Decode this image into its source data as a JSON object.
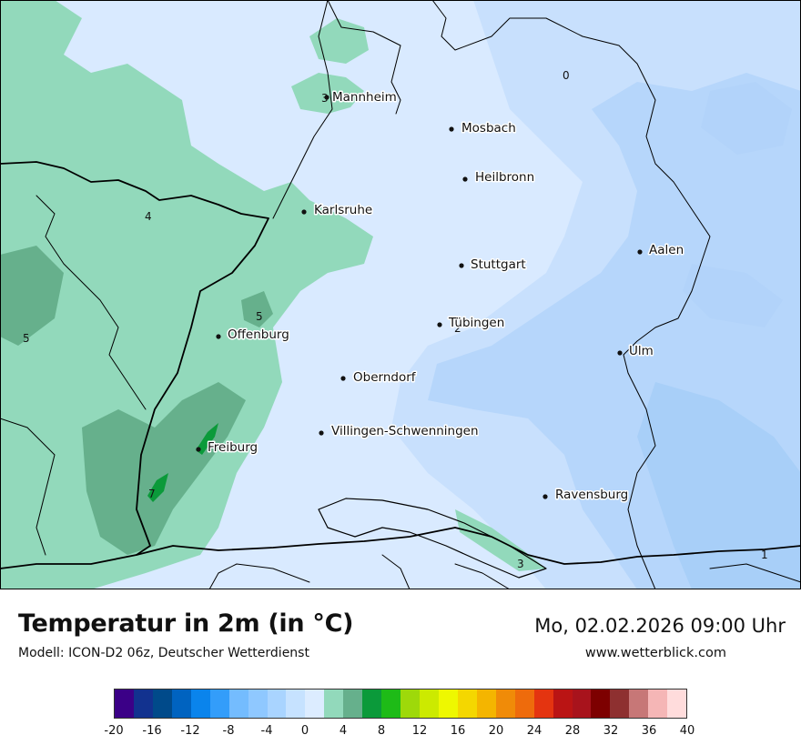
{
  "map": {
    "cities": [
      {
        "name": "Mannheim"
      },
      {
        "name": "Mosbach"
      },
      {
        "name": "Heilbronn"
      },
      {
        "name": "Karlsruhe"
      },
      {
        "name": "Stuttgart"
      },
      {
        "name": "Aalen"
      },
      {
        "name": "Tübingen"
      },
      {
        "name": "Offenburg"
      },
      {
        "name": "Ulm"
      },
      {
        "name": "Oberndorf"
      },
      {
        "name": "Villingen-Schwenningen"
      },
      {
        "name": "Freiburg"
      },
      {
        "name": "Ravensburg"
      }
    ],
    "isolines": [
      "0",
      "3",
      "4",
      "5",
      "5",
      "2",
      "7",
      "3",
      "1"
    ]
  },
  "footer": {
    "title": "Temperatur in 2m (in °C)",
    "model": "Modell: ICON-D2 06z, Deutscher Wetterdienst",
    "datetime": "Mo, 02.02.2026 09:00 Uhr",
    "website": "www.wetterblick.com"
  },
  "legend": {
    "colors": [
      "#3b0087",
      "#12328f",
      "#004a8a",
      "#0063c0",
      "#0a84ec",
      "#339dfa",
      "#74bcfe",
      "#8fc8ff",
      "#a9d4ff",
      "#c6e2ff",
      "#dcecff",
      "#92d9bb",
      "#66b08c",
      "#0b9a3a",
      "#1ebb17",
      "#9ed90a",
      "#ccea00",
      "#eef800",
      "#f4d700",
      "#f4b500",
      "#f08b08",
      "#ee6b0c",
      "#e43410",
      "#ba1414",
      "#a8131c",
      "#7d0000",
      "#8e3030",
      "#c77777",
      "#f5b6b6",
      "#ffdcdc"
    ],
    "ticks": [
      "-20",
      "-16",
      "-12",
      "-8",
      "-4",
      "0",
      "4",
      "8",
      "12",
      "16",
      "20",
      "24",
      "28",
      "32",
      "36",
      "40"
    ]
  }
}
